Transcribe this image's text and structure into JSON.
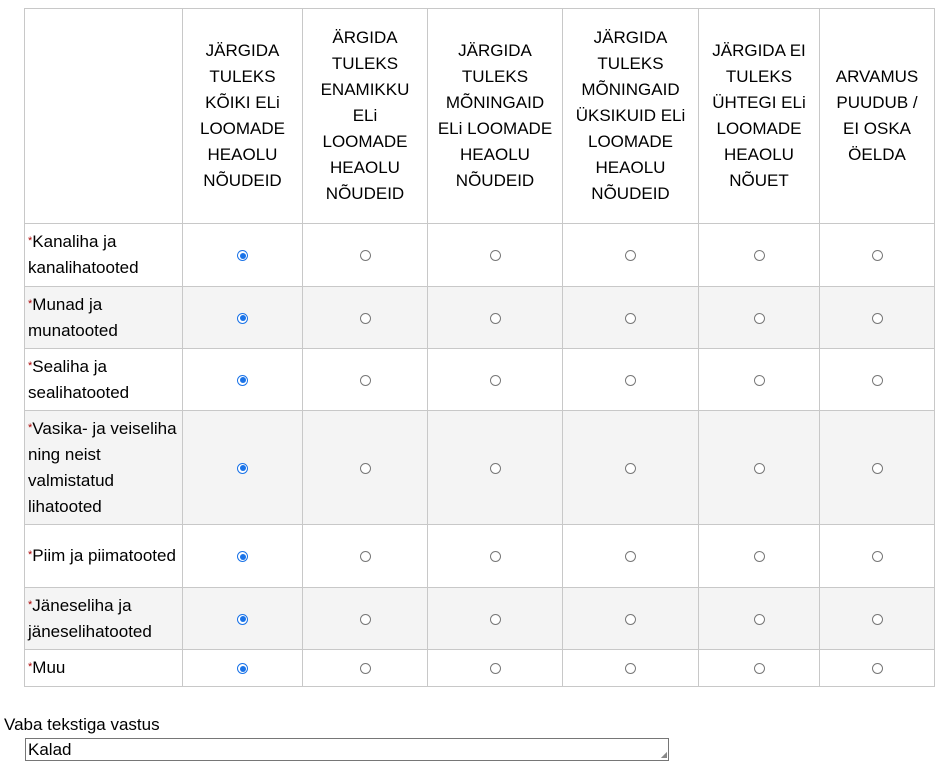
{
  "columns": [
    "JÄRGIDA TULEKS KÕIKI ELi LOOMADE HEAOLU NÕUDEID",
    "ÄRGIDA TULEKS ENAMIKKU ELi LOOMADE HEAOLU NÕUDEID",
    "JÄRGIDA TULEKS MÕNINGAID ELi LOOMADE HEAOLU NÕUDEID",
    "JÄRGIDA TULEKS MÕNINGAID ÜKSIKUID ELi LOOMADE HEAOLU NÕUDEID",
    "JÄRGIDA EI TULEKS ÜHTEGI ELi LOOMADE HEAOLU NÕUET",
    "ARVAMUS PUUDUB / EI OSKA ÖELDA"
  ],
  "required_mark": "*",
  "rows": [
    {
      "label": "Kanaliha ja kanalihatooted",
      "selected": 0
    },
    {
      "label": "Munad ja munatooted",
      "selected": 0
    },
    {
      "label": "Sealiha ja sealihatooted",
      "selected": 0
    },
    {
      "label": "Vasika- ja veiseliha ning neist valmistatud lihatooted",
      "selected": 0
    },
    {
      "label": "Piim ja piimatooted",
      "selected": 0
    },
    {
      "label": "Jäneseliha ja jäneselihatooted",
      "selected": 0
    },
    {
      "label": "Muu",
      "selected": 0
    }
  ],
  "free_text": {
    "label": "Vaba tekstiga vastus",
    "value": "Kalad"
  },
  "colors": {
    "accent": "#1a73e8",
    "required": "#aa0000",
    "stripe": "#f4f4f4"
  }
}
